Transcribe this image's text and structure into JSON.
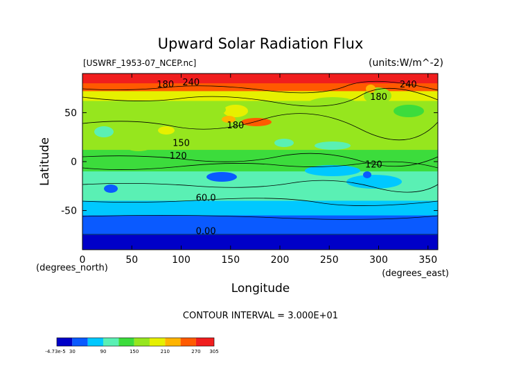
{
  "chart_data": {
    "type": "heatmap",
    "title": "Upward Solar Radiation Flux",
    "file_label": "[USWRF_1953-07_NCEP.nc]",
    "units_label": "(units:W/m^-2)",
    "xlabel": "Longitude",
    "ylabel": "Latitude",
    "x_unit_label": "(degrees_east)",
    "y_unit_label": "(degrees_north)",
    "xlim": [
      0,
      360
    ],
    "ylim": [
      -90,
      90
    ],
    "x_ticks": [
      0,
      50,
      100,
      150,
      200,
      250,
      300,
      350
    ],
    "y_ticks": [
      -50,
      0,
      50
    ],
    "contour_interval_text": "CONTOUR INTERVAL = 3.000E+01",
    "contour_labels": [
      {
        "text": "180",
        "lon": 84,
        "lat": 76
      },
      {
        "text": "240",
        "lon": 110,
        "lat": 78
      },
      {
        "text": "240",
        "lon": 330,
        "lat": 76
      },
      {
        "text": "180",
        "lon": 300,
        "lat": 63
      },
      {
        "text": "180",
        "lon": 155,
        "lat": 34
      },
      {
        "text": "150",
        "lon": 100,
        "lat": 16
      },
      {
        "text": "120",
        "lon": 97,
        "lat": 3
      },
      {
        "text": "120",
        "lon": 295,
        "lat": -6
      },
      {
        "text": "60.0",
        "lon": 125,
        "lat": -40
      },
      {
        "text": "0.00",
        "lon": 125,
        "lat": -74
      }
    ],
    "zonal_profile": [
      {
        "lat_min": 80,
        "lat_max": 90,
        "value": 270
      },
      {
        "lat_min": 72,
        "lat_max": 80,
        "value": 240
      },
      {
        "lat_min": 62,
        "lat_max": 72,
        "value": 195
      },
      {
        "lat_min": 45,
        "lat_max": 62,
        "value": 175
      },
      {
        "lat_min": 30,
        "lat_max": 45,
        "value": 165
      },
      {
        "lat_min": 12,
        "lat_max": 30,
        "value": 155
      },
      {
        "lat_min": 0,
        "lat_max": 12,
        "value": 140
      },
      {
        "lat_min": -10,
        "lat_max": 0,
        "value": 125
      },
      {
        "lat_min": -25,
        "lat_max": -10,
        "value": 110
      },
      {
        "lat_min": -40,
        "lat_max": -25,
        "value": 90
      },
      {
        "lat_min": -55,
        "lat_max": -40,
        "value": 60
      },
      {
        "lat_min": -75,
        "lat_max": -55,
        "value": 30
      },
      {
        "lat_min": -90,
        "lat_max": -75,
        "value": 0
      }
    ],
    "colorbar": {
      "min_label": "-4.73e-5",
      "tick_labels": [
        "30",
        "90",
        "150",
        "210",
        "270",
        "305"
      ],
      "bins": [
        0,
        30,
        60,
        90,
        120,
        150,
        180,
        210,
        240,
        270,
        305
      ],
      "colors": [
        "#7f00bf",
        "#0000c8",
        "#0a5aff",
        "#00c8ff",
        "#5af0b4",
        "#3cdc3c",
        "#96e61e",
        "#e6f000",
        "#ffb400",
        "#ff5a00",
        "#f01e1e"
      ]
    }
  }
}
